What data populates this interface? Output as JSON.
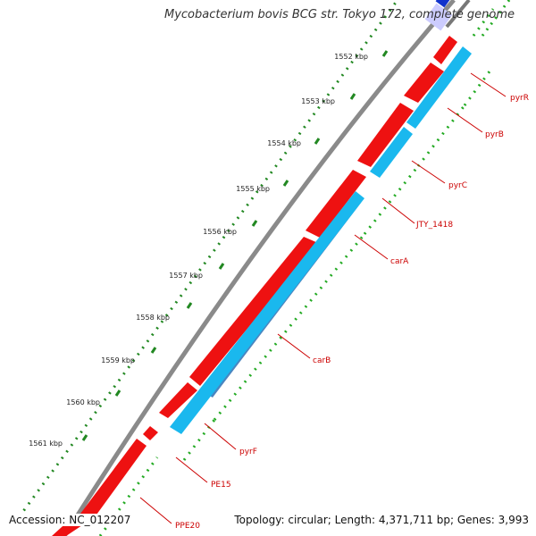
{
  "title": "Mycobacterium bovis BCG str. Tokyo 172, complete genome",
  "footer": {
    "accession": "Accession: NC_012207",
    "stats": "Topology: circular; Length: 4,371,711 bp; Genes: 3,993"
  },
  "colors": {
    "forward_gene": "#ee1111",
    "reverse_gene": "#1ab8ee",
    "reverse_gene_dark": "#4a86c0",
    "backbone": "#8a8a8a",
    "tick_major": "#228822",
    "tick_minor": "#22aa22",
    "label": "#cc0000"
  },
  "scale": {
    "unit": "kbp",
    "ticks": [
      {
        "kbp": 1552,
        "label": "1552 kbp"
      },
      {
        "kbp": 1553,
        "label": "1553 kbp"
      },
      {
        "kbp": 1554,
        "label": "1554 kbp"
      },
      {
        "kbp": 1555,
        "label": "1555 kbp"
      },
      {
        "kbp": 1556,
        "label": "1556 kbp"
      },
      {
        "kbp": 1557,
        "label": "1557 kbp"
      },
      {
        "kbp": 1558,
        "label": "1558 kbp"
      },
      {
        "kbp": 1559,
        "label": "1559 kbp"
      },
      {
        "kbp": 1560,
        "label": "1560 kbp"
      },
      {
        "kbp": 1561,
        "label": "1561 kbp"
      }
    ]
  },
  "genes": [
    {
      "name": "pyrR",
      "strand": "reverse"
    },
    {
      "name": "pyrB",
      "strand": "reverse"
    },
    {
      "name": "pyrC",
      "strand": "reverse"
    },
    {
      "name": "JTY_1418",
      "strand": "reverse"
    },
    {
      "name": "carA",
      "strand": "reverse"
    },
    {
      "name": "carB",
      "strand": "reverse"
    },
    {
      "name": "pyrF",
      "strand": "reverse"
    },
    {
      "name": "PE15",
      "strand": "forward"
    },
    {
      "name": "PPE20",
      "strand": "forward"
    }
  ]
}
